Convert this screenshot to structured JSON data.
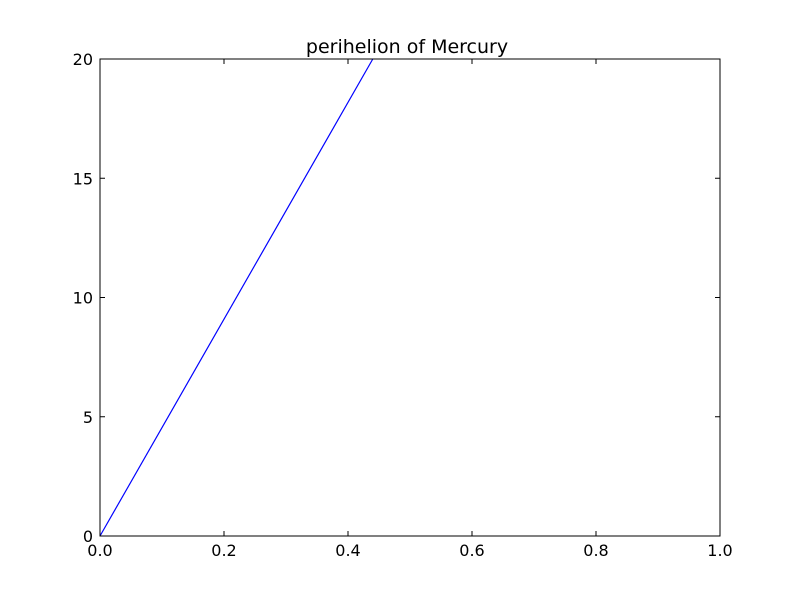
{
  "chart_data": {
    "type": "line",
    "title": "perihelion of Mercury",
    "xlabel": "",
    "ylabel": "",
    "xlim": [
      0.0,
      1.0
    ],
    "ylim": [
      0,
      20
    ],
    "x_ticks": [
      "0.0",
      "0.2",
      "0.4",
      "0.6",
      "0.8",
      "1.0"
    ],
    "y_ticks": [
      "0",
      "5",
      "10",
      "15",
      "20"
    ],
    "grid": false,
    "legend": "none",
    "series": [
      {
        "color": "#0000ff",
        "x": [
          0.0,
          0.44
        ],
        "y": [
          0,
          20
        ]
      }
    ]
  }
}
